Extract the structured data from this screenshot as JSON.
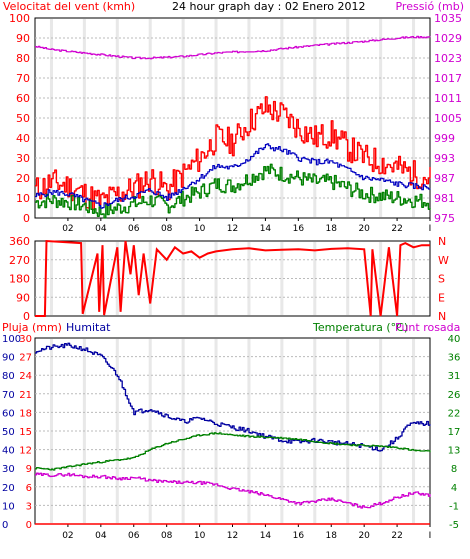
{
  "header": {
    "left_title": "Velocitat del vent (kmh)",
    "center_title": "24 hour graph day : 02 Enero 2012",
    "right_title": "Pressió (mb)"
  },
  "colors": {
    "wind_gust": "#ff0000",
    "wind_avg": "#0000c0",
    "wind_min": "#008000",
    "pressure": "#d000d0",
    "humidity": "#0000a0",
    "temperature": "#008000",
    "dewpoint": "#d000d0",
    "rain": "#ff0000",
    "direction": "#ff0000",
    "grid_band": "#e8e8e8"
  },
  "chart_data": [
    {
      "type": "line",
      "id": "wind_pressure",
      "x_ticks": [
        "02",
        "04",
        "06",
        "08",
        "10",
        "12",
        "14",
        "16",
        "18",
        "20",
        "22",
        "I"
      ],
      "y_left_ticks": [
        "0",
        "10",
        "20",
        "30",
        "40",
        "50",
        "60",
        "70",
        "80",
        "90",
        "100"
      ],
      "y_left_range": [
        0,
        100
      ],
      "y_right_ticks": [
        "975",
        "981",
        "987",
        "993",
        "999",
        "1005",
        "1011",
        "1017",
        "1023",
        "1029",
        "1035"
      ],
      "y_right_range": [
        975,
        1035
      ],
      "series": [
        {
          "key": "gust",
          "x": [
            0,
            1,
            2,
            3,
            4,
            5,
            6,
            7,
            8,
            9,
            10,
            11,
            12,
            13,
            14,
            15,
            16,
            17,
            18,
            19,
            20,
            21,
            22,
            23,
            24
          ],
          "y": [
            14,
            18,
            16,
            12,
            8,
            12,
            15,
            20,
            14,
            22,
            30,
            40,
            38,
            48,
            55,
            52,
            45,
            40,
            42,
            35,
            30,
            28,
            25,
            22,
            20
          ]
        },
        {
          "key": "avg",
          "x": [
            0,
            1,
            2,
            3,
            4,
            5,
            6,
            7,
            8,
            9,
            10,
            11,
            12,
            13,
            14,
            15,
            16,
            17,
            18,
            19,
            20,
            21,
            22,
            23,
            24
          ],
          "y": [
            11,
            13,
            12,
            9,
            6,
            9,
            11,
            14,
            10,
            15,
            20,
            26,
            25,
            30,
            36,
            34,
            30,
            28,
            28,
            24,
            20,
            19,
            17,
            16,
            15
          ]
        },
        {
          "key": "min",
          "x": [
            0,
            1,
            2,
            3,
            4,
            5,
            6,
            7,
            8,
            9,
            10,
            11,
            12,
            13,
            14,
            15,
            16,
            17,
            18,
            19,
            20,
            21,
            22,
            23,
            24
          ],
          "y": [
            8,
            9,
            8,
            6,
            3,
            5,
            7,
            9,
            6,
            10,
            13,
            17,
            16,
            20,
            24,
            22,
            20,
            18,
            18,
            15,
            12,
            11,
            10,
            9,
            8
          ]
        },
        {
          "key": "pressure",
          "x": [
            0,
            1,
            2,
            3,
            4,
            5,
            6,
            7,
            8,
            9,
            10,
            11,
            12,
            13,
            14,
            15,
            16,
            17,
            18,
            19,
            20,
            21,
            22,
            23,
            24
          ],
          "y": [
            1026.5,
            1025.5,
            1025,
            1024.5,
            1024,
            1023.5,
            1023,
            1023,
            1023.2,
            1023.5,
            1024,
            1024.5,
            1024.8,
            1025,
            1025.2,
            1025.8,
            1026.3,
            1026.8,
            1027.2,
            1027.6,
            1028,
            1028.5,
            1029,
            1029.3,
            1029.3
          ]
        }
      ]
    },
    {
      "type": "line",
      "id": "wind_direction",
      "y_left_ticks": [
        "360",
        "270",
        "180",
        "90",
        "0"
      ],
      "y_range": [
        0,
        360
      ],
      "y_right_ticks": [
        "N",
        "W",
        "S",
        "E",
        "N"
      ],
      "series": [
        {
          "key": "direction",
          "x": [
            0,
            0.6,
            0.7,
            2.8,
            2.9,
            3.8,
            3.9,
            4.1,
            4.2,
            5.0,
            5.2,
            5.5,
            5.8,
            6.0,
            6.3,
            6.6,
            7.0,
            7.4,
            8.0,
            8.5,
            9.0,
            9.5,
            10.0,
            10.5,
            11,
            12,
            13,
            14,
            15,
            16,
            17,
            18,
            19,
            20,
            20.4,
            20.5,
            21,
            21.5,
            22,
            22.2,
            22.5,
            23,
            23.5,
            24
          ],
          "y": [
            0,
            0,
            360,
            350,
            10,
            300,
            20,
            340,
            5,
            330,
            20,
            360,
            200,
            340,
            100,
            300,
            60,
            320,
            270,
            330,
            300,
            310,
            280,
            300,
            310,
            320,
            325,
            315,
            318,
            320,
            315,
            322,
            325,
            320,
            0,
            320,
            0,
            330,
            0,
            340,
            350,
            330,
            340,
            340
          ]
        }
      ]
    },
    {
      "type": "line",
      "id": "humidity_temp",
      "left_label_rain": "Pluja (mm)",
      "left_label_hum": "Humitat",
      "right_label_temp": "Temperatura (°C)",
      "right_label_dew": "Punt rosada",
      "y_left_ticks": [
        "0",
        "3",
        "6",
        "9",
        "12",
        "15",
        "18",
        "21",
        "24",
        "27",
        "30"
      ],
      "y_left_ticks2": [
        "0",
        "10",
        "20",
        "30",
        "40",
        "50",
        "60",
        "70",
        "80",
        "90",
        "100"
      ],
      "y_left_range": [
        0,
        100
      ],
      "y_right_ticks": [
        "-5",
        "-1",
        "4",
        "8",
        "13",
        "17",
        "22",
        "26",
        "31",
        "36",
        "40"
      ],
      "y_right_range": [
        -5,
        40
      ],
      "series": [
        {
          "key": "humidity",
          "x": [
            0,
            1,
            2,
            3,
            4,
            5,
            5.5,
            6,
            7,
            8,
            9,
            10,
            11,
            12,
            13,
            14,
            15,
            16,
            17,
            18,
            19,
            20,
            21,
            22,
            22.5,
            23,
            24
          ],
          "y": [
            93,
            95,
            96,
            94,
            90,
            80,
            70,
            60,
            62,
            58,
            55,
            57,
            54,
            52,
            50,
            47,
            45,
            44,
            45,
            44,
            43,
            42,
            40,
            46,
            52,
            54,
            54
          ]
        },
        {
          "key": "temperature",
          "x": [
            0,
            1,
            2,
            3,
            4,
            5,
            6,
            7,
            8,
            9,
            10,
            11,
            12,
            13,
            14,
            15,
            16,
            17,
            18,
            19,
            20,
            21,
            22,
            23,
            24
          ],
          "y": [
            8.5,
            8.2,
            8.8,
            9.5,
            10,
            10.5,
            11,
            13,
            14.5,
            15.5,
            16.5,
            17,
            16.5,
            16.2,
            16,
            15.8,
            15.5,
            15,
            14.5,
            14.2,
            14,
            13.8,
            13.5,
            12.8,
            12.5
          ]
        },
        {
          "key": "dewpoint",
          "x": [
            0,
            1,
            2,
            3,
            4,
            5,
            6,
            7,
            8,
            9,
            10,
            11,
            12,
            13,
            14,
            15,
            16,
            17,
            18,
            19,
            20,
            21,
            22,
            23,
            24
          ],
          "y": [
            7,
            6.8,
            7,
            6.5,
            6.5,
            6,
            6.2,
            5.5,
            5.2,
            5,
            5,
            4.5,
            3.5,
            2.8,
            2,
            1,
            0,
            0.5,
            1,
            0,
            -1,
            0,
            1.5,
            2.5,
            2
          ]
        },
        {
          "key": "rain",
          "x": [
            0,
            24
          ],
          "y": [
            0,
            0
          ]
        }
      ]
    }
  ]
}
